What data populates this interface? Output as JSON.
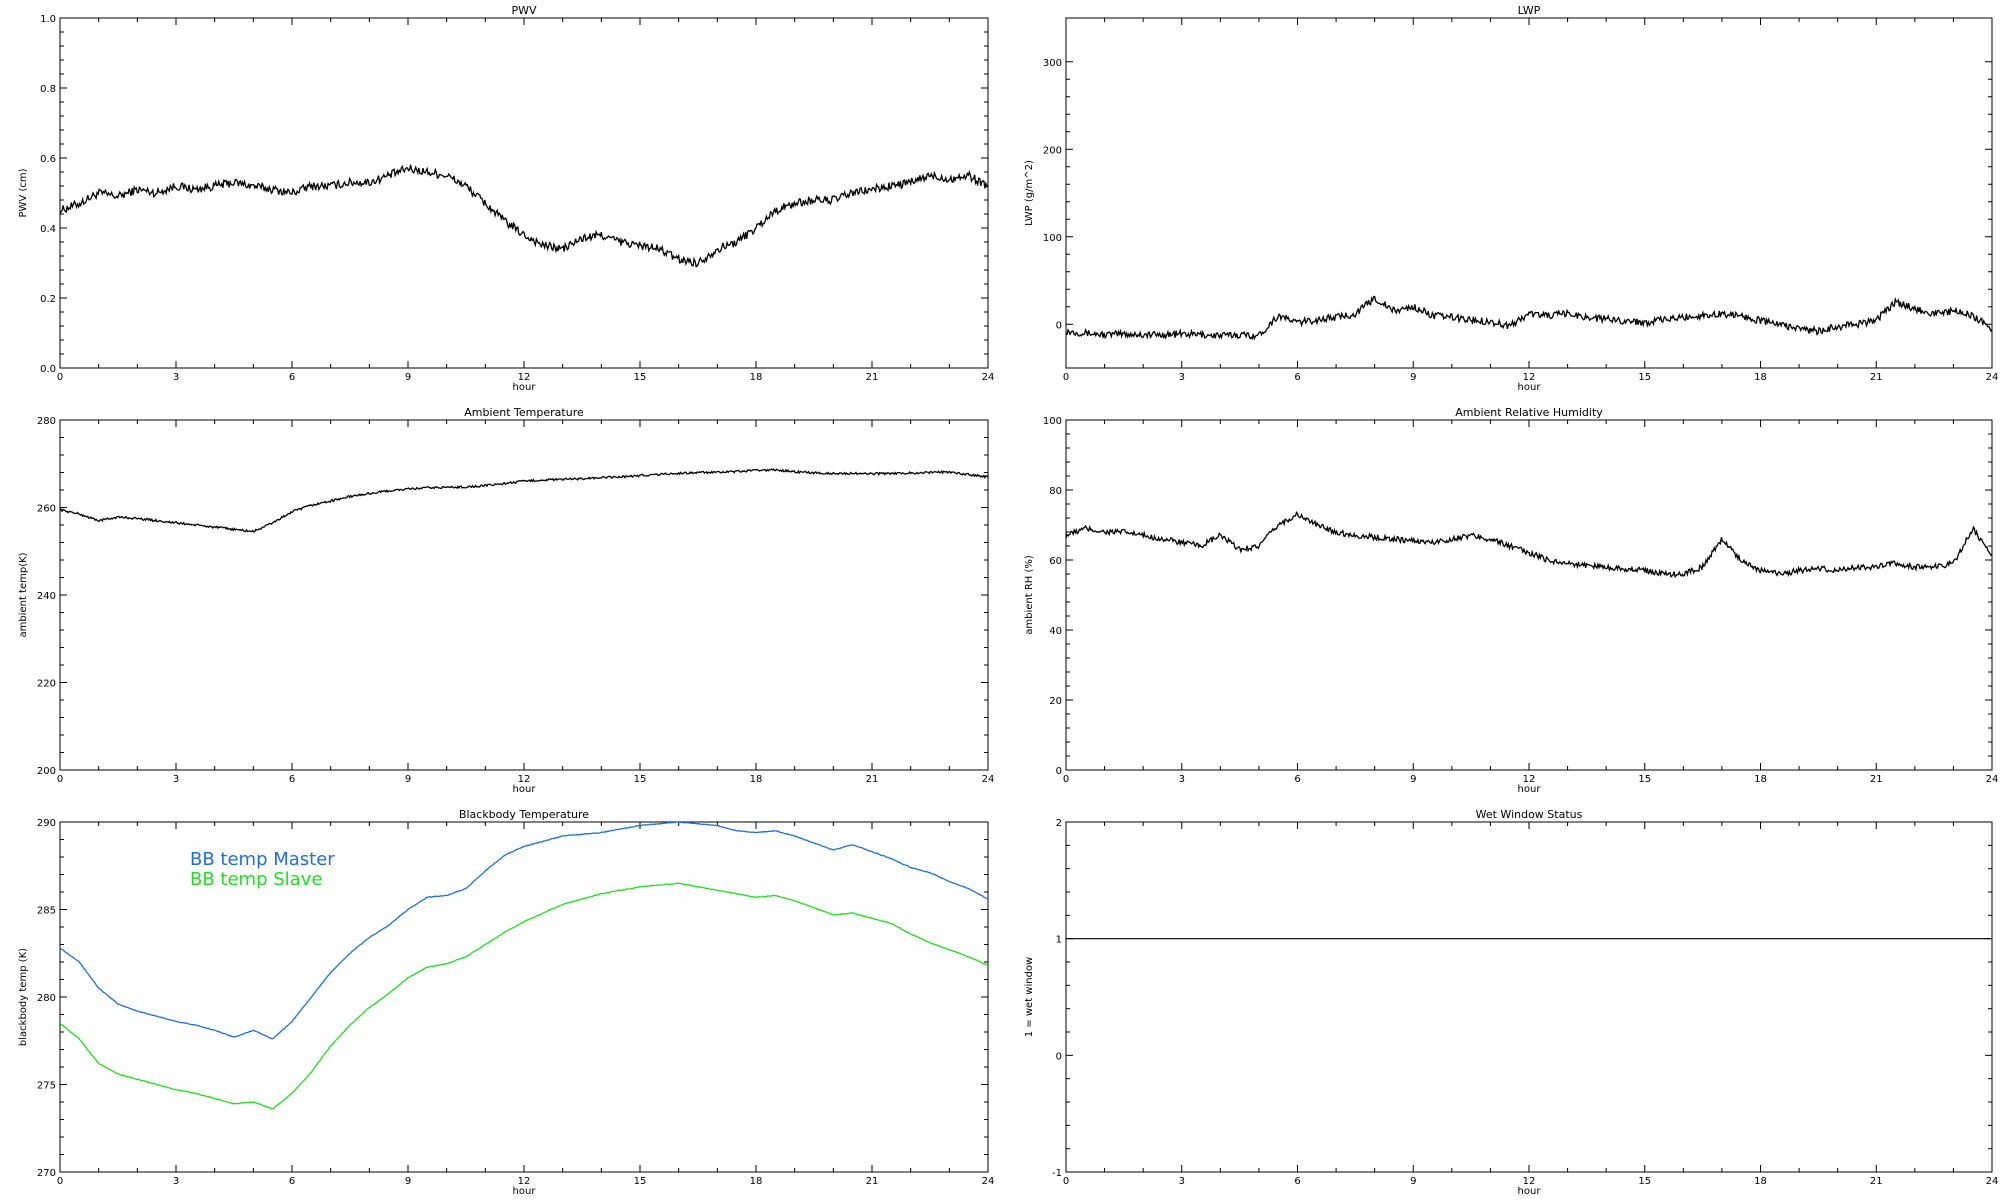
{
  "chart_data": [
    {
      "type": "line",
      "title": "PWV",
      "xlabel": "hour",
      "ylabel": "PWV (cm)",
      "xlim": [
        0,
        24
      ],
      "ylim": [
        0.0,
        1.0
      ],
      "xticks": [
        0,
        3,
        6,
        9,
        12,
        15,
        18,
        21,
        24
      ],
      "yticks": [
        "0.0",
        "0.2",
        "0.4",
        "0.6",
        "0.8",
        "1.0"
      ],
      "noise": 0.012,
      "series": [
        {
          "color": "#000000",
          "x": [
            0,
            0.5,
            1,
            1.5,
            2,
            2.5,
            3,
            3.5,
            4,
            4.5,
            5,
            5.5,
            6,
            6.5,
            7,
            7.5,
            8,
            8.5,
            9,
            9.5,
            10,
            10.5,
            11,
            11.5,
            12,
            12.5,
            13,
            13.5,
            14,
            14.5,
            15,
            15.5,
            16,
            16.5,
            17,
            17.5,
            18,
            18.5,
            19,
            19.5,
            20,
            20.5,
            21,
            21.5,
            22,
            22.5,
            23,
            23.5,
            24
          ],
          "y": [
            0.45,
            0.47,
            0.5,
            0.49,
            0.51,
            0.5,
            0.52,
            0.51,
            0.52,
            0.53,
            0.52,
            0.51,
            0.5,
            0.52,
            0.52,
            0.53,
            0.53,
            0.55,
            0.57,
            0.56,
            0.55,
            0.52,
            0.47,
            0.42,
            0.38,
            0.35,
            0.34,
            0.37,
            0.38,
            0.36,
            0.35,
            0.34,
            0.31,
            0.3,
            0.34,
            0.36,
            0.4,
            0.45,
            0.47,
            0.48,
            0.48,
            0.5,
            0.51,
            0.52,
            0.53,
            0.55,
            0.54,
            0.55,
            0.52
          ]
        }
      ]
    },
    {
      "type": "line",
      "title": "LWP",
      "xlabel": "hour",
      "ylabel": "LWP (g/m^2)",
      "xlim": [
        0,
        24
      ],
      "ylim": [
        -50,
        350
      ],
      "xticks": [
        0,
        3,
        6,
        9,
        12,
        15,
        18,
        21,
        24
      ],
      "yticks": [
        "0",
        "100",
        "200",
        "300"
      ],
      "noise": 4,
      "series": [
        {
          "color": "#000000",
          "x": [
            0,
            0.5,
            1,
            1.5,
            2,
            2.5,
            3,
            3.5,
            4,
            4.5,
            5,
            5.5,
            6,
            6.5,
            7,
            7.5,
            8,
            8.5,
            9,
            9.5,
            10,
            10.5,
            11,
            11.5,
            12,
            12.5,
            13,
            13.5,
            14,
            14.5,
            15,
            15.5,
            16,
            16.5,
            17,
            17.5,
            18,
            18.5,
            19,
            19.5,
            20,
            20.5,
            21,
            21.5,
            22,
            22.5,
            23,
            23.5,
            24
          ],
          "y": [
            -8,
            -10,
            -12,
            -11,
            -12,
            -12,
            -11,
            -12,
            -13,
            -12,
            -13,
            10,
            2,
            5,
            8,
            12,
            30,
            15,
            20,
            10,
            8,
            5,
            3,
            -2,
            12,
            10,
            12,
            8,
            6,
            4,
            2,
            5,
            8,
            10,
            12,
            10,
            4,
            0,
            -5,
            -8,
            -3,
            0,
            5,
            25,
            18,
            12,
            15,
            10,
            -5
          ]
        }
      ]
    },
    {
      "type": "line",
      "title": "Ambient Temperature",
      "xlabel": "hour",
      "ylabel": "ambient temp(K)",
      "xlim": [
        0,
        24
      ],
      "ylim": [
        200,
        280
      ],
      "xticks": [
        0,
        3,
        6,
        9,
        12,
        15,
        18,
        21,
        24
      ],
      "yticks": [
        "200",
        "220",
        "240",
        "260",
        "280"
      ],
      "noise": 0.25,
      "series": [
        {
          "color": "#000000",
          "x": [
            0,
            0.5,
            1,
            1.5,
            2,
            2.5,
            3,
            3.5,
            4,
            4.5,
            5,
            5.5,
            6,
            6.5,
            7,
            7.5,
            8,
            8.5,
            9,
            9.5,
            10,
            10.5,
            11,
            11.5,
            12,
            12.5,
            13,
            13.5,
            14,
            14.5,
            15,
            15.5,
            16,
            16.5,
            17,
            17.5,
            18,
            18.5,
            19,
            19.5,
            20,
            20.5,
            21,
            21.5,
            22,
            22.5,
            23,
            23.5,
            24
          ],
          "y": [
            259.5,
            258.5,
            257,
            257.8,
            257.5,
            257,
            256.5,
            256,
            255.5,
            255,
            254.5,
            256.5,
            259,
            260.5,
            261.5,
            262.5,
            263.2,
            263.8,
            264.2,
            264.5,
            264.6,
            264.7,
            265,
            265.5,
            266,
            266.3,
            266.4,
            266.6,
            266.8,
            267,
            267.3,
            267.6,
            267.8,
            268,
            268,
            268.2,
            268.5,
            268.6,
            268.2,
            267.9,
            267.8,
            267.8,
            267.7,
            267.8,
            267.9,
            268,
            268.1,
            267.5,
            267
          ]
        }
      ]
    },
    {
      "type": "line",
      "title": "Ambient Relative Humidity",
      "xlabel": "hour",
      "ylabel": "ambient RH (%)",
      "xlim": [
        0,
        24
      ],
      "ylim": [
        0,
        100
      ],
      "xticks": [
        0,
        3,
        6,
        9,
        12,
        15,
        18,
        21,
        24
      ],
      "yticks": [
        "0",
        "20",
        "40",
        "60",
        "80",
        "100"
      ],
      "noise": 0.8,
      "series": [
        {
          "color": "#000000",
          "x": [
            0,
            0.5,
            1,
            1.5,
            2,
            2.5,
            3,
            3.5,
            4,
            4.5,
            5,
            5.5,
            6,
            6.5,
            7,
            7.5,
            8,
            8.5,
            9,
            9.5,
            10,
            10.5,
            11,
            11.5,
            12,
            12.5,
            13,
            13.5,
            14,
            14.5,
            15,
            15.5,
            16,
            16.5,
            17,
            17.5,
            18,
            18.5,
            19,
            19.5,
            20,
            20.5,
            21,
            21.5,
            22,
            22.5,
            23,
            23.5,
            24
          ],
          "y": [
            67,
            69,
            68,
            68,
            67,
            66,
            65,
            64,
            67,
            63,
            64,
            70,
            73,
            70,
            68,
            67,
            66.5,
            66,
            65.5,
            65,
            66,
            67,
            66,
            64,
            62,
            60,
            59,
            58.5,
            58,
            57.5,
            57,
            56,
            56,
            58,
            66,
            60,
            57,
            56,
            57,
            57.5,
            57,
            58,
            58,
            59,
            58,
            58,
            59,
            69,
            61
          ]
        }
      ]
    },
    {
      "type": "line",
      "title": "Blackbody Temperature",
      "xlabel": "hour",
      "ylabel": "blackbody temp (K)",
      "xlim": [
        0,
        24
      ],
      "ylim": [
        270,
        290
      ],
      "xticks": [
        0,
        3,
        6,
        9,
        12,
        15,
        18,
        21,
        24
      ],
      "yticks": [
        "270",
        "275",
        "280",
        "285",
        "290"
      ],
      "noise": 0.02,
      "legend": "top-left",
      "series": [
        {
          "name": "BB temp Master",
          "color": "#1f6fe0",
          "x": [
            0,
            0.5,
            1,
            1.5,
            2,
            2.5,
            3,
            3.5,
            4,
            4.5,
            5,
            5.5,
            6,
            6.5,
            7,
            7.5,
            8,
            8.5,
            9,
            9.5,
            10,
            10.5,
            11,
            11.5,
            12,
            12.5,
            13,
            13.5,
            14,
            14.5,
            15,
            15.5,
            16,
            16.5,
            17,
            17.5,
            18,
            18.5,
            19,
            19.5,
            20,
            20.5,
            21,
            21.5,
            22,
            22.5,
            23,
            23.5,
            24
          ],
          "y": [
            282.8,
            282,
            280.5,
            279.6,
            279.2,
            278.9,
            278.6,
            278.4,
            278.1,
            277.7,
            278.1,
            277.6,
            278.6,
            280,
            281.4,
            282.5,
            283.4,
            284.1,
            285,
            285.7,
            285.8,
            286.2,
            287.2,
            288.1,
            288.6,
            288.9,
            289.2,
            289.3,
            289.4,
            289.6,
            289.8,
            289.9,
            290,
            289.9,
            289.8,
            289.5,
            289.4,
            289.5,
            289.2,
            288.8,
            288.4,
            288.7,
            288.3,
            287.9,
            287.4,
            287.1,
            286.6,
            286.2,
            285.6
          ]
        },
        {
          "name": "BB temp Slave",
          "color": "#22dd22",
          "x": [
            0,
            0.5,
            1,
            1.5,
            2,
            2.5,
            3,
            3.5,
            4,
            4.5,
            5,
            5.5,
            6,
            6.5,
            7,
            7.5,
            8,
            8.5,
            9,
            9.5,
            10,
            10.5,
            11,
            11.5,
            12,
            12.5,
            13,
            13.5,
            14,
            14.5,
            15,
            15.5,
            16,
            16.5,
            17,
            17.5,
            18,
            18.5,
            19,
            19.5,
            20,
            20.5,
            21,
            21.5,
            22,
            22.5,
            23,
            23.5,
            24
          ],
          "y": [
            278.5,
            277.6,
            276.2,
            275.6,
            275.3,
            275,
            274.7,
            274.5,
            274.2,
            273.9,
            274,
            273.6,
            274.5,
            275.7,
            277.2,
            278.4,
            279.4,
            280.2,
            281.1,
            281.7,
            281.9,
            282.3,
            283,
            283.7,
            284.3,
            284.8,
            285.3,
            285.6,
            285.9,
            286.1,
            286.3,
            286.4,
            286.5,
            286.3,
            286.1,
            285.9,
            285.7,
            285.8,
            285.5,
            285.1,
            284.7,
            284.8,
            284.5,
            284.2,
            283.6,
            283.1,
            282.7,
            282.3,
            281.8
          ]
        }
      ]
    },
    {
      "type": "line",
      "title": "Wet Window Status",
      "xlabel": "hour",
      "ylabel": "1 = wet window",
      "xlim": [
        0,
        24
      ],
      "ylim": [
        -1,
        2
      ],
      "xticks": [
        0,
        3,
        6,
        9,
        12,
        15,
        18,
        21,
        24
      ],
      "yticks": [
        "-1",
        "0",
        "1",
        "2"
      ],
      "noise": 0,
      "series": [
        {
          "color": "#000000",
          "x": [
            0,
            24
          ],
          "y": [
            1,
            1
          ]
        }
      ]
    }
  ]
}
